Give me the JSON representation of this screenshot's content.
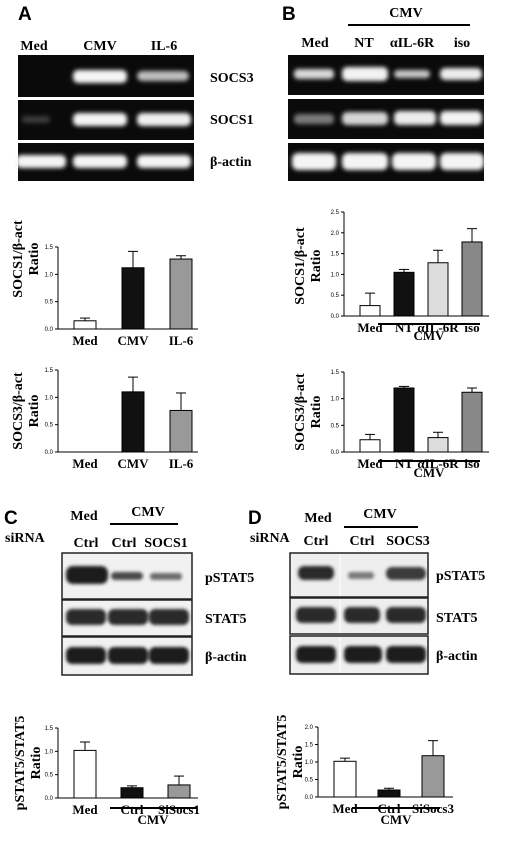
{
  "panels": {
    "a": {
      "letter": "A",
      "lane_labels": [
        "Med",
        "CMV",
        "IL-6"
      ],
      "blot_labels": [
        "SOCS3",
        "SOCS1",
        "β-actin"
      ]
    },
    "b": {
      "letter": "B",
      "group_label": "CMV",
      "lane_labels": [
        "Med",
        "NT",
        "αIL-6R",
        "iso"
      ],
      "blot_labels": []
    },
    "c": {
      "letter": "C",
      "sirna_label": "siRNA",
      "top_labels": [
        "Med",
        "CMV"
      ],
      "lane_labels": [
        "Ctrl",
        "Ctrl",
        "SOCS1"
      ],
      "blot_labels": [
        "pSTAT5",
        "STAT5",
        "β-actin"
      ]
    },
    "d": {
      "letter": "D",
      "sirna_label": "siRNA",
      "top_labels": [
        "Med",
        "CMV"
      ],
      "lane_labels": [
        "Ctrl",
        "Ctrl",
        "SOCS3"
      ],
      "blot_labels": [
        "pSTAT5",
        "STAT5",
        "β-actin"
      ]
    }
  },
  "chart_data": [
    {
      "id": "a1",
      "type": "bar",
      "categories": [
        "Med",
        "CMV",
        "IL-6"
      ],
      "values": [
        0.15,
        1.12,
        1.28
      ],
      "errors": [
        0.05,
        0.3,
        0.06
      ],
      "ylabel": "SOCS1/β-act Ratio",
      "ylim": [
        0,
        1.5
      ],
      "yticks": [
        "0.0",
        "0.5",
        "1.0",
        "1.5"
      ],
      "fills": [
        "#ffffff",
        "#111111",
        "#999999"
      ],
      "group_label": ""
    },
    {
      "id": "a2",
      "type": "bar",
      "categories": [
        "Med",
        "CMV",
        "IL-6"
      ],
      "values": [
        0,
        1.1,
        0.76
      ],
      "errors": [
        0,
        0.27,
        0.32
      ],
      "ylabel": "SOCS3/β-act Ratio",
      "ylim": [
        0,
        1.5
      ],
      "yticks": [
        "0.0",
        "0.5",
        "1.0",
        "1.5"
      ],
      "fills": [
        "#ffffff",
        "#111111",
        "#999999"
      ],
      "group_label": ""
    },
    {
      "id": "b1",
      "type": "bar",
      "categories": [
        "Med",
        "NT",
        "αIL-6R",
        "iso"
      ],
      "values": [
        0.25,
        1.05,
        1.28,
        1.78
      ],
      "errors": [
        0.3,
        0.07,
        0.3,
        0.32
      ],
      "ylabel": "SOCS1/β-act Ratio",
      "ylim": [
        0,
        2.5
      ],
      "yticks": [
        "0.0",
        "0.5",
        "1.0",
        "1.5",
        "2.0",
        "2.5"
      ],
      "fills": [
        "#ffffff",
        "#111111",
        "#dddddd",
        "#888888"
      ],
      "group_label": "CMV"
    },
    {
      "id": "b2",
      "type": "bar",
      "categories": [
        "Med",
        "NT",
        "αIL-6R",
        "iso"
      ],
      "values": [
        0.23,
        1.2,
        0.27,
        1.12
      ],
      "errors": [
        0.1,
        0.03,
        0.1,
        0.08
      ],
      "ylabel": "SOCS3/β-act Ratio",
      "ylim": [
        0,
        1.5
      ],
      "yticks": [
        "0.0",
        "0.5",
        "1.0",
        "1.5"
      ],
      "fills": [
        "#ffffff",
        "#111111",
        "#dddddd",
        "#888888"
      ],
      "group_label": "CMV"
    },
    {
      "id": "c",
      "type": "bar",
      "categories": [
        "Med",
        "Ctrl",
        "SiSocs1"
      ],
      "values": [
        1.02,
        0.22,
        0.28
      ],
      "errors": [
        0.18,
        0.04,
        0.19
      ],
      "ylabel": "pSTAT5/STAT5 Ratio",
      "ylim": [
        0,
        1.5
      ],
      "yticks": [
        "0.0",
        "0.5",
        "1.0",
        "1.5"
      ],
      "fills": [
        "#ffffff",
        "#111111",
        "#999999"
      ],
      "group_label": "CMV"
    },
    {
      "id": "d",
      "type": "bar",
      "categories": [
        "Med",
        "Ctrl",
        "SiSocs3"
      ],
      "values": [
        1.02,
        0.2,
        1.18
      ],
      "errors": [
        0.09,
        0.05,
        0.43
      ],
      "ylabel": "pSTAT5/STAT5 Ratio",
      "ylim": [
        0,
        2.0
      ],
      "yticks": [
        "0.0",
        "0.5",
        "1.0",
        "1.5",
        "2.0"
      ],
      "fills": [
        "#ffffff",
        "#111111",
        "#999999"
      ],
      "group_label": "CMV"
    }
  ]
}
